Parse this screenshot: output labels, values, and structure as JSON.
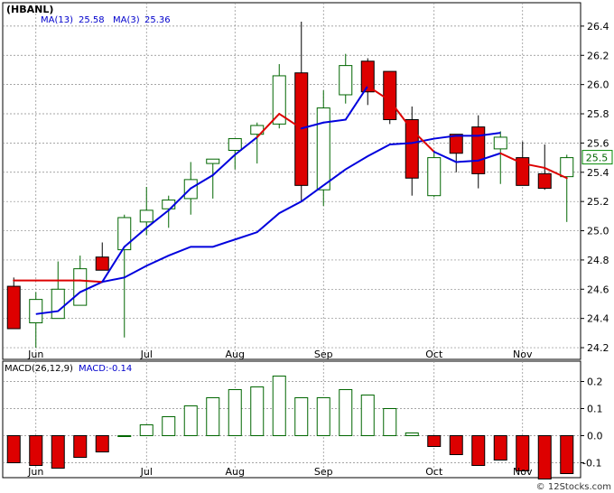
{
  "chart_data": [
    {
      "type": "candlestick",
      "ticker_label": "(HBANL)",
      "legend": [
        {
          "text": "MA(13)",
          "value": "25.58",
          "color": "#0000cc"
        },
        {
          "text": "MA(3)",
          "value": "25.36",
          "color": "#0000cc"
        }
      ],
      "x_tick_labels": [
        "Jun",
        "Jul",
        "Aug",
        "Sep",
        "Oct",
        "Nov"
      ],
      "y_ticks": [
        {
          "value": 24.2,
          "label": "24.2"
        },
        {
          "value": 24.4,
          "label": "24.4"
        },
        {
          "value": 24.6,
          "label": "24.6"
        },
        {
          "value": 24.8,
          "label": "24.8"
        },
        {
          "value": 25.0,
          "label": "25.0"
        },
        {
          "value": 25.2,
          "label": "25.2"
        },
        {
          "value": 25.4,
          "label": "25.4"
        },
        {
          "value": 25.6,
          "label": "25.6"
        },
        {
          "value": 25.8,
          "label": "25.8"
        },
        {
          "value": 26.0,
          "label": "26.0"
        },
        {
          "value": 26.2,
          "label": "26.2"
        },
        {
          "value": 26.4,
          "label": "26.4"
        }
      ],
      "ylim": [
        24.12,
        26.56
      ],
      "grid": true,
      "last_price_label": "25.5",
      "up_color": "#ffffff",
      "down_color": "#dd0000",
      "candles": [
        {
          "x": 0.5,
          "open": 24.62,
          "high": 24.68,
          "low": 24.33,
          "close": 24.33
        },
        {
          "x": 1.5,
          "open": 24.37,
          "high": 24.58,
          "low": 24.2,
          "close": 24.53
        },
        {
          "x": 2.5,
          "open": 24.4,
          "high": 24.79,
          "low": 24.4,
          "close": 24.6
        },
        {
          "x": 3.5,
          "open": 24.49,
          "high": 24.83,
          "low": 24.49,
          "close": 24.74
        },
        {
          "x": 4.5,
          "open": 24.82,
          "high": 24.92,
          "low": 24.73,
          "close": 24.73
        },
        {
          "x": 5.5,
          "open": 24.87,
          "high": 25.11,
          "low": 24.27,
          "close": 25.09
        },
        {
          "x": 6.5,
          "open": 25.06,
          "high": 25.3,
          "low": 24.97,
          "close": 25.14
        },
        {
          "x": 7.5,
          "open": 25.15,
          "high": 25.24,
          "low": 25.02,
          "close": 25.21
        },
        {
          "x": 8.5,
          "open": 25.22,
          "high": 25.47,
          "low": 25.11,
          "close": 25.35
        },
        {
          "x": 9.5,
          "open": 25.46,
          "high": 25.48,
          "low": 25.22,
          "close": 25.49
        },
        {
          "x": 10.5,
          "open": 25.55,
          "high": 25.62,
          "low": 25.42,
          "close": 25.63
        },
        {
          "x": 11.5,
          "open": 25.66,
          "high": 25.74,
          "low": 25.46,
          "close": 25.72
        },
        {
          "x": 12.5,
          "open": 25.73,
          "high": 26.14,
          "low": 25.7,
          "close": 26.06
        },
        {
          "x": 13.5,
          "open": 26.08,
          "high": 26.43,
          "low": 25.2,
          "close": 25.31
        },
        {
          "x": 14.5,
          "open": 25.28,
          "high": 25.96,
          "low": 25.17,
          "close": 25.84
        },
        {
          "x": 15.5,
          "open": 25.93,
          "high": 26.21,
          "low": 25.87,
          "close": 26.13
        },
        {
          "x": 16.5,
          "open": 26.16,
          "high": 26.18,
          "low": 25.86,
          "close": 25.95
        },
        {
          "x": 17.5,
          "open": 26.09,
          "high": 26.09,
          "low": 25.73,
          "close": 25.76
        },
        {
          "x": 18.5,
          "open": 25.76,
          "high": 25.85,
          "low": 25.24,
          "close": 25.36
        },
        {
          "x": 19.5,
          "open": 25.24,
          "high": 25.55,
          "low": 25.23,
          "close": 25.5
        },
        {
          "x": 20.5,
          "open": 25.66,
          "high": 25.66,
          "low": 25.4,
          "close": 25.53
        },
        {
          "x": 21.5,
          "open": 25.71,
          "high": 25.79,
          "low": 25.29,
          "close": 25.39
        },
        {
          "x": 22.5,
          "open": 25.56,
          "high": 25.68,
          "low": 25.32,
          "close": 25.64
        },
        {
          "x": 23.5,
          "open": 25.5,
          "high": 25.61,
          "low": 25.31,
          "close": 25.31
        },
        {
          "x": 24.5,
          "open": 25.39,
          "high": 25.59,
          "low": 25.28,
          "close": 25.29
        },
        {
          "x": 25.5,
          "open": 25.37,
          "high": 25.52,
          "low": 25.06,
          "close": 25.5
        }
      ],
      "ma_long": {
        "name": "MA(13)",
        "color": "#0000dd",
        "points": [
          [
            1.5,
            24.43
          ],
          [
            2.5,
            24.45
          ],
          [
            3.5,
            24.58
          ],
          [
            4.5,
            24.65
          ],
          [
            5.5,
            24.68
          ],
          [
            6.5,
            24.76
          ],
          [
            7.5,
            24.83
          ],
          [
            8.5,
            24.89
          ],
          [
            9.5,
            24.89
          ],
          [
            10.5,
            24.94
          ],
          [
            11.5,
            24.99
          ],
          [
            12.5,
            25.12
          ],
          [
            13.5,
            25.2
          ],
          [
            14.5,
            25.31
          ],
          [
            15.5,
            25.42
          ],
          [
            16.5,
            25.51
          ],
          [
            17.5,
            25.59
          ],
          [
            18.5,
            25.6
          ],
          [
            19.5,
            25.63
          ],
          [
            20.5,
            25.65
          ],
          [
            21.5,
            25.65
          ],
          [
            22.5,
            25.67
          ]
        ]
      },
      "ma_short": {
        "name": "MA(3)",
        "color": "#dd0000",
        "color_alt": "#0000dd",
        "points": [
          [
            0.5,
            24.66
          ],
          [
            1.5,
            24.66
          ],
          [
            2.5,
            24.66
          ],
          [
            3.5,
            24.66
          ],
          [
            4.5,
            24.65
          ],
          [
            5.5,
            24.89
          ],
          [
            6.5,
            25.02
          ],
          [
            7.5,
            25.14
          ],
          [
            8.5,
            25.29
          ],
          [
            9.5,
            25.38
          ],
          [
            10.5,
            25.52
          ],
          [
            11.5,
            25.64
          ],
          [
            12.5,
            25.8
          ],
          [
            13.5,
            25.7
          ],
          [
            14.5,
            25.74
          ],
          [
            15.5,
            25.76
          ],
          [
            16.5,
            25.99
          ],
          [
            17.5,
            25.89
          ],
          [
            18.5,
            25.69
          ],
          [
            19.5,
            25.54
          ],
          [
            20.5,
            25.47
          ],
          [
            21.5,
            25.48
          ],
          [
            22.5,
            25.53
          ],
          [
            23.5,
            25.46
          ],
          [
            24.5,
            25.43
          ],
          [
            25.5,
            25.36
          ]
        ],
        "colors": [
          "#dd0000",
          "#dd0000",
          "#dd0000",
          "#dd0000",
          "#0000dd",
          "#0000dd",
          "#0000dd",
          "#0000dd",
          "#0000dd",
          "#0000dd",
          "#0000dd",
          "#dd0000",
          "#dd0000",
          "#0000dd",
          "#0000dd",
          "#0000dd",
          "#dd0000",
          "#dd0000",
          "#dd0000",
          "#0000dd",
          "#0000dd",
          "#0000dd",
          "#dd0000",
          "#dd0000",
          "#dd0000"
        ]
      }
    },
    {
      "type": "bar",
      "label": "MACD(26,12,9)",
      "value_label": "MACD:-0.14",
      "x_tick_labels": [
        "Jun",
        "Jul",
        "Aug",
        "Sep",
        "Oct",
        "Nov"
      ],
      "y_ticks": [
        {
          "value": 0.2,
          "label": "0.2"
        },
        {
          "value": 0.1,
          "label": "0.1"
        },
        {
          "value": 0.0,
          "label": "0.0"
        },
        {
          "value": -0.1,
          "label": "-0.1"
        }
      ],
      "ylim": [
        -0.155,
        0.275
      ],
      "grid": true,
      "positive_color": "#006600",
      "negative_color": "#dd0000",
      "values": [
        -0.1,
        -0.11,
        -0.12,
        -0.08,
        -0.06,
        0.0,
        0.04,
        0.07,
        0.11,
        0.14,
        0.17,
        0.18,
        0.22,
        0.14,
        0.14,
        0.17,
        0.15,
        0.1,
        0.01,
        -0.04,
        -0.07,
        -0.11,
        -0.09,
        -0.13,
        -0.16,
        -0.14
      ]
    }
  ],
  "footer": {
    "copyright": "© 12Stocks.com"
  }
}
